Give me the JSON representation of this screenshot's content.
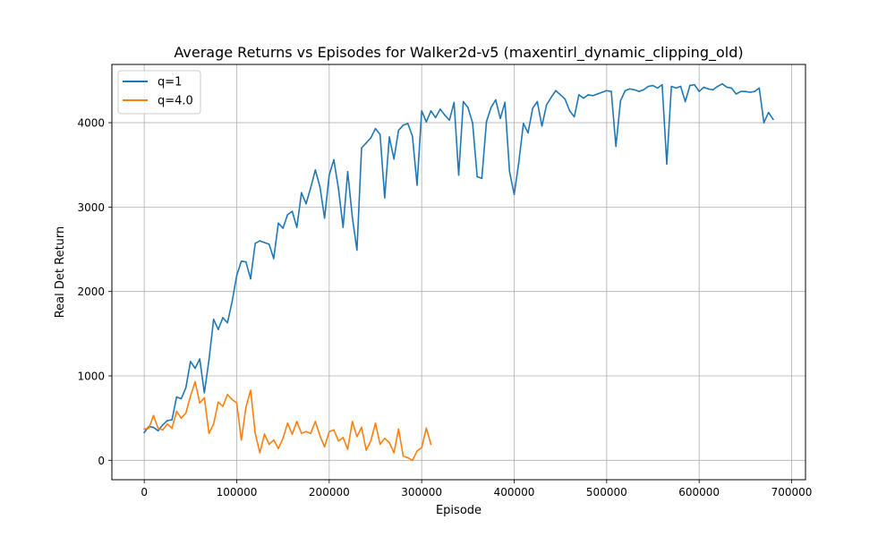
{
  "chart_data": {
    "type": "line",
    "title": "Average Returns vs Episodes for Walker2d-v5 (maxentirl_dynamic_clipping_old)",
    "xlabel": "Episode",
    "ylabel": "Real Det Return",
    "xlim": [
      -35000,
      715000
    ],
    "ylim": [
      -230,
      4690
    ],
    "xticks": [
      0,
      100000,
      200000,
      300000,
      400000,
      500000,
      600000,
      700000
    ],
    "yticks": [
      0,
      1000,
      2000,
      3000,
      4000
    ],
    "grid": true,
    "legend_position": "top-left",
    "series": [
      {
        "name": "q=1",
        "color": "#1f77b4",
        "x": [
          0,
          5000,
          10000,
          15000,
          20000,
          25000,
          30000,
          35000,
          40000,
          45000,
          50000,
          55000,
          60000,
          65000,
          70000,
          75000,
          80000,
          85000,
          90000,
          95000,
          100000,
          105000,
          110000,
          115000,
          120000,
          125000,
          130000,
          135000,
          140000,
          145000,
          150000,
          155000,
          160000,
          165000,
          170000,
          175000,
          180000,
          185000,
          190000,
          195000,
          200000,
          205000,
          210000,
          215000,
          220000,
          225000,
          230000,
          235000,
          240000,
          245000,
          250000,
          255000,
          260000,
          265000,
          270000,
          275000,
          280000,
          285000,
          290000,
          295000,
          300000,
          305000,
          310000,
          315000,
          320000,
          325000,
          330000,
          335000,
          340000,
          345000,
          350000,
          355000,
          360000,
          365000,
          370000,
          375000,
          380000,
          385000,
          390000,
          395000,
          400000,
          405000,
          410000,
          415000,
          420000,
          425000,
          430000,
          435000,
          440000,
          445000,
          450000,
          455000,
          460000,
          465000,
          470000,
          475000,
          480000,
          485000,
          490000,
          495000,
          500000,
          505000,
          510000,
          515000,
          520000,
          525000,
          530000,
          535000,
          540000,
          545000,
          550000,
          555000,
          560000,
          565000,
          570000,
          575000,
          580000,
          585000,
          590000,
          595000,
          600000,
          605000,
          610000,
          615000,
          620000,
          625000,
          630000,
          635000,
          640000,
          645000,
          650000,
          655000,
          660000,
          665000,
          670000,
          675000,
          680000
        ],
        "y": [
          330,
          400,
          390,
          350,
          420,
          470,
          480,
          750,
          730,
          860,
          1170,
          1090,
          1200,
          800,
          1190,
          1670,
          1550,
          1690,
          1630,
          1880,
          2190,
          2360,
          2350,
          2150,
          2570,
          2600,
          2580,
          2560,
          2390,
          2810,
          2750,
          2910,
          2950,
          2760,
          3170,
          3040,
          3230,
          3440,
          3240,
          2870,
          3380,
          3560,
          3220,
          2760,
          3420,
          2880,
          2490,
          3700,
          3760,
          3820,
          3930,
          3860,
          3110,
          3830,
          3570,
          3910,
          3970,
          3990,
          3840,
          3260,
          4140,
          4010,
          4140,
          4060,
          4160,
          4090,
          4030,
          4240,
          3380,
          4250,
          4180,
          4000,
          3360,
          3340,
          4010,
          4180,
          4270,
          4050,
          4240,
          3420,
          3150,
          3530,
          3990,
          3880,
          4170,
          4250,
          3960,
          4210,
          4300,
          4380,
          4330,
          4280,
          4140,
          4070,
          4330,
          4290,
          4330,
          4320,
          4340,
          4360,
          4380,
          4370,
          3720,
          4260,
          4380,
          4400,
          4390,
          4370,
          4390,
          4430,
          4440,
          4410,
          4450,
          3510,
          4430,
          4410,
          4430,
          4250,
          4440,
          4450,
          4370,
          4420,
          4400,
          4390,
          4430,
          4460,
          4420,
          4410,
          4340,
          4370,
          4370,
          4360,
          4370,
          4410,
          4000,
          4120,
          4040
        ]
      },
      {
        "name": "q=4.0",
        "color": "#ff7f0e",
        "x": [
          0,
          5000,
          10000,
          15000,
          20000,
          25000,
          30000,
          35000,
          40000,
          45000,
          50000,
          55000,
          60000,
          65000,
          70000,
          75000,
          80000,
          85000,
          90000,
          95000,
          100000,
          105000,
          110000,
          115000,
          120000,
          125000,
          130000,
          135000,
          140000,
          145000,
          150000,
          155000,
          160000,
          165000,
          170000,
          175000,
          180000,
          185000,
          190000,
          195000,
          200000,
          205000,
          210000,
          215000,
          220000,
          225000,
          230000,
          235000,
          240000,
          245000,
          250000,
          255000,
          260000,
          265000,
          270000,
          275000,
          280000,
          285000,
          290000,
          295000,
          300000,
          305000,
          310000
        ],
        "y": [
          370,
          380,
          530,
          380,
          360,
          430,
          380,
          580,
          500,
          560,
          760,
          930,
          680,
          740,
          320,
          430,
          690,
          640,
          780,
          720,
          680,
          240,
          630,
          830,
          320,
          90,
          310,
          190,
          240,
          140,
          260,
          440,
          310,
          460,
          320,
          340,
          320,
          460,
          290,
          160,
          340,
          360,
          230,
          270,
          130,
          460,
          280,
          390,
          120,
          230,
          440,
          190,
          260,
          210,
          90,
          370,
          50,
          30,
          0,
          110,
          150,
          380,
          190
        ]
      }
    ]
  }
}
